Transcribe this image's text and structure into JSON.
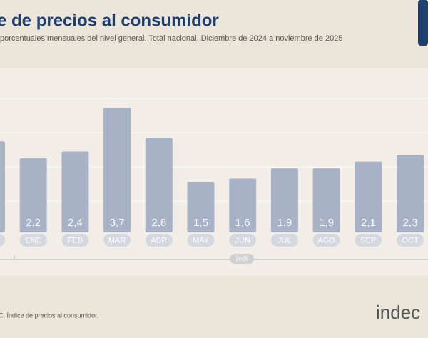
{
  "chart_data": {
    "type": "bar",
    "title": "e de precios al consumidor",
    "subtitle": "porcentuales mensuales del nivel general. Total nacional. Diciembre de 2024 a noviembre de 2025",
    "categories": [
      null,
      "ENE",
      "FEB",
      "MAR",
      "ABR",
      "MAY",
      "JUN",
      "JUL",
      "AGO",
      "SEP",
      "OCT"
    ],
    "values": [
      2.7,
      2.2,
      2.4,
      3.7,
      2.8,
      1.5,
      1.6,
      1.9,
      1.9,
      2.1,
      2.3
    ],
    "value_labels": [
      null,
      "2,2",
      "2,4",
      "3,7",
      "2,8",
      "1,5",
      "1,6",
      "1,9",
      "1,9",
      "2,1",
      "2,3"
    ],
    "color": "#a8b2c6",
    "year_label": "2025",
    "source": "C, Índice de precios al consumidor.",
    "logo": "indec"
  }
}
